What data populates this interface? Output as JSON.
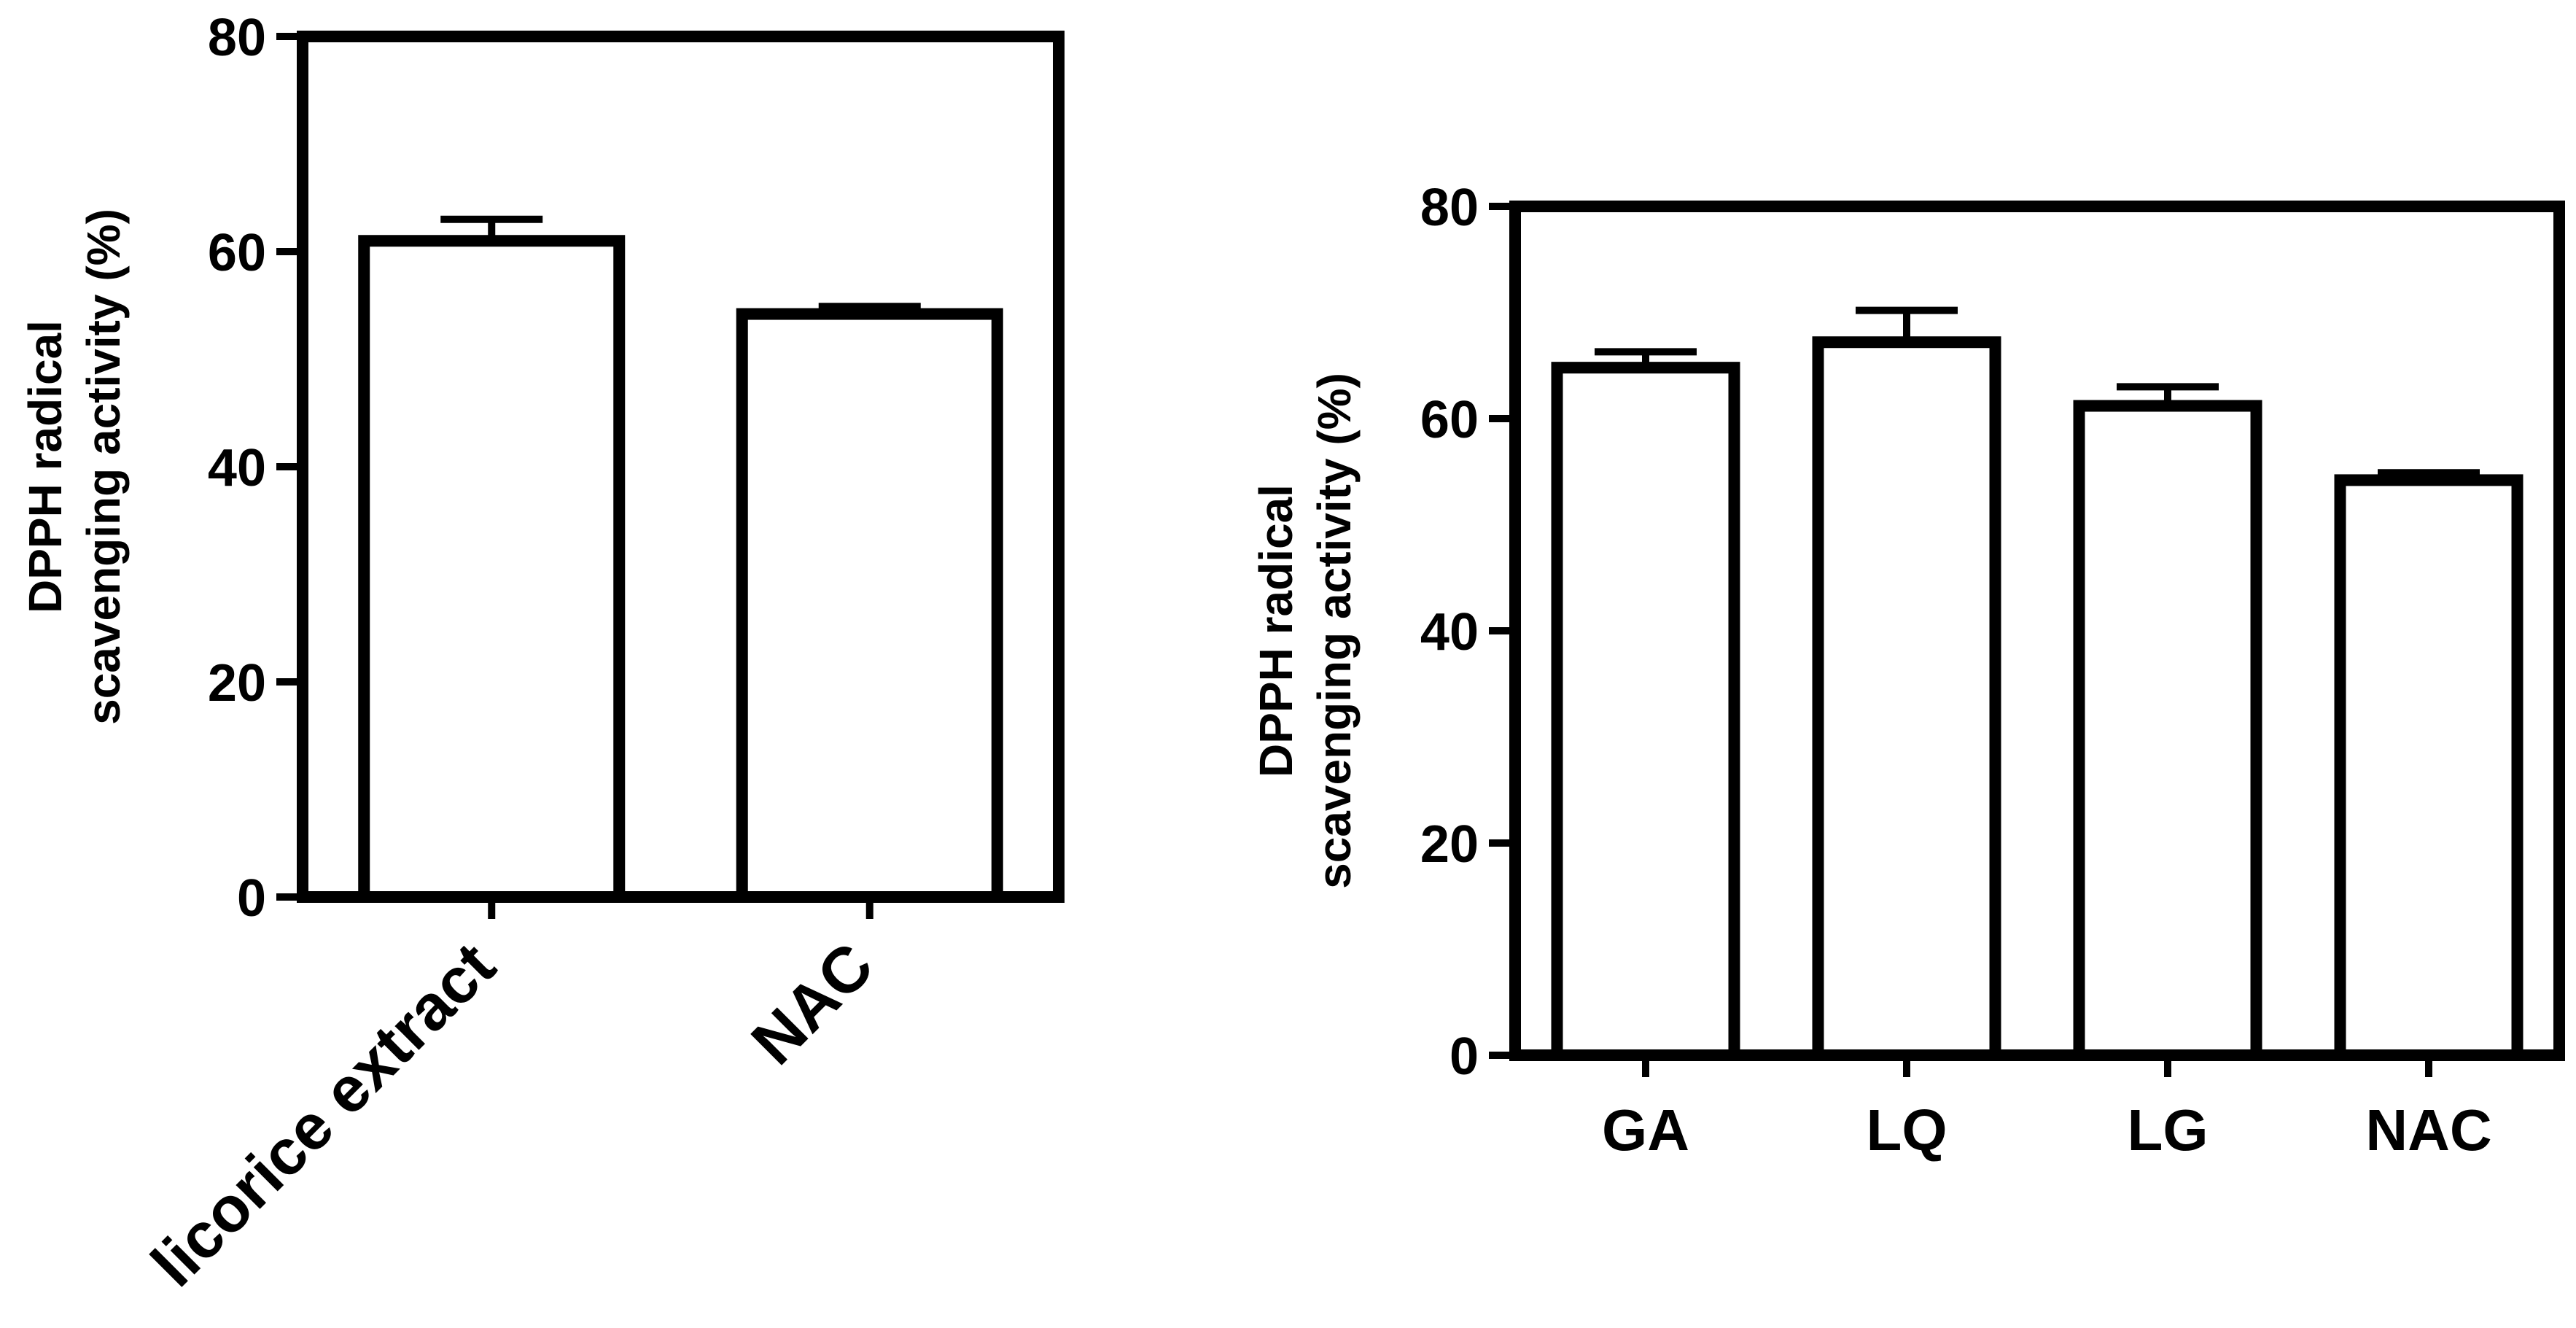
{
  "chart_data": [
    {
      "type": "bar",
      "title": "",
      "xlabel": "",
      "ylabel_lines": [
        "DPPH radical",
        "scavenging activity (%)"
      ],
      "categories": [
        "licorice extract",
        "NAC"
      ],
      "values": [
        61,
        54.2
      ],
      "error_plus": [
        2,
        0.7
      ],
      "ylim": [
        0,
        80
      ],
      "yticks": [
        0,
        20,
        40,
        60,
        80
      ],
      "grid": false,
      "legend": "none",
      "x_tick_rotation": -45,
      "bar_fill": "#ffffff",
      "stroke_color": "#000000"
    },
    {
      "type": "bar",
      "title": "",
      "xlabel": "",
      "ylabel_lines": [
        "DPPH radical",
        "scavenging activity (%)"
      ],
      "categories": [
        "GA",
        "LQ",
        "LG",
        "NAC"
      ],
      "values": [
        64.8,
        67.2,
        61.2,
        54.2
      ],
      "error_plus": [
        1.5,
        3,
        1.8,
        0.7
      ],
      "ylim": [
        0,
        80
      ],
      "yticks": [
        0,
        20,
        40,
        60,
        80
      ],
      "grid": false,
      "legend": "none",
      "x_tick_rotation": 0,
      "bar_fill": "#ffffff",
      "stroke_color": "#000000"
    }
  ]
}
